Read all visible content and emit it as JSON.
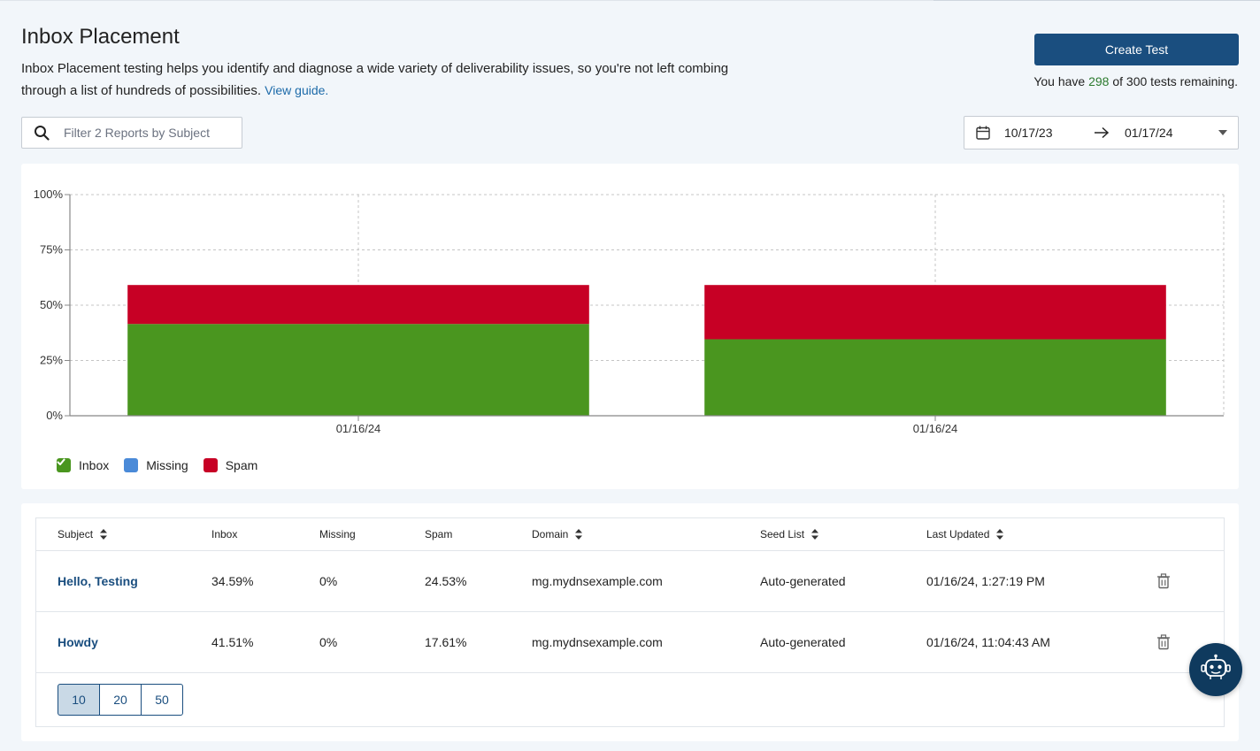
{
  "header": {
    "title": "Inbox Placement",
    "description": "Inbox Placement testing helps you identify and diagnose a wide variety of deliverability issues, so you're not left combing through a list of hundreds of possibilities.",
    "guide_link": "View guide."
  },
  "actions": {
    "create_label": "Create Test",
    "remaining_prefix": "You have",
    "remaining_count": "298",
    "remaining_suffix": "of 300 tests remaining."
  },
  "search": {
    "placeholder": "Filter 2 Reports by Subject",
    "value": "",
    "icon": "search-icon"
  },
  "date_range": {
    "start": "10/17/23",
    "end": "01/17/24",
    "icon": "calendar-icon"
  },
  "colors": {
    "inbox": "#4a961f",
    "missing": "#4a8ad8",
    "spam": "#c70025",
    "primary": "#1a4e7f"
  },
  "chart_data": {
    "type": "bar",
    "stacked": true,
    "categories": [
      "01/16/24",
      "01/16/24"
    ],
    "series": [
      {
        "name": "Inbox",
        "values": [
          41.51,
          34.59
        ]
      },
      {
        "name": "Missing",
        "values": [
          0,
          0
        ]
      },
      {
        "name": "Spam",
        "values": [
          17.61,
          24.53
        ]
      }
    ],
    "y_ticks": [
      "0%",
      "25%",
      "50%",
      "75%",
      "100%"
    ],
    "ylim": [
      0,
      100
    ],
    "grid": true,
    "legend_position": "bottom-left"
  },
  "table": {
    "columns": [
      {
        "label": "Subject",
        "sortable": true
      },
      {
        "label": "Inbox",
        "sortable": false
      },
      {
        "label": "Missing",
        "sortable": false
      },
      {
        "label": "Spam",
        "sortable": false
      },
      {
        "label": "Domain",
        "sortable": true
      },
      {
        "label": "Seed List",
        "sortable": true
      },
      {
        "label": "Last Updated",
        "sortable": true
      }
    ],
    "rows": [
      {
        "subject": "Hello, Testing",
        "inbox": "34.59%",
        "missing": "0%",
        "spam": "24.53%",
        "domain": "mg.mydnsexample.com",
        "seed_list": "Auto-generated",
        "last_updated": "01/16/24, 1:27:19 PM"
      },
      {
        "subject": "Howdy",
        "inbox": "41.51%",
        "missing": "0%",
        "spam": "17.61%",
        "domain": "mg.mydnsexample.com",
        "seed_list": "Auto-generated",
        "last_updated": "01/16/24, 11:04:43 AM"
      }
    ],
    "page_sizes": [
      "10",
      "20",
      "50"
    ],
    "selected_page_size": "10"
  },
  "assistant": {
    "icon": "robot-icon"
  }
}
